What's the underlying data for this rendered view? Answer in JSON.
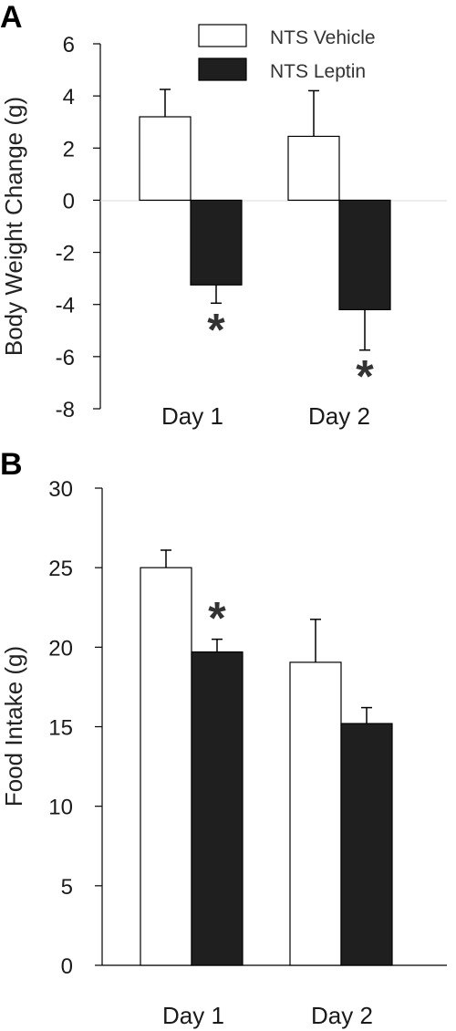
{
  "chart_data": [
    {
      "type": "bar",
      "panel_label": "A",
      "categories": [
        "Day 1",
        "Day 2"
      ],
      "series": [
        {
          "name": "NTS Vehicle",
          "values": [
            3.2,
            2.45
          ],
          "errors": [
            1.05,
            1.75
          ],
          "color": "#ffffff"
        },
        {
          "name": "NTS Leptin",
          "values": [
            -3.25,
            -4.2
          ],
          "errors": [
            0.7,
            1.55
          ],
          "color": "#1f1f1f"
        }
      ],
      "significance": [
        {
          "category": "Day 1",
          "series": "NTS Leptin",
          "mark": "*"
        },
        {
          "category": "Day 2",
          "series": "NTS Leptin",
          "mark": "*"
        }
      ],
      "ylabel": "Body Weight Change (g)",
      "ylim": [
        -8,
        6
      ],
      "yticks": [
        "6",
        "4",
        "2",
        "0",
        "-2",
        "-4",
        "-6",
        "-8"
      ],
      "legend_position": "top-right"
    },
    {
      "type": "bar",
      "panel_label": "B",
      "categories": [
        "Day 1",
        "Day 2"
      ],
      "series": [
        {
          "name": "NTS Vehicle",
          "values": [
            25.0,
            19.05
          ],
          "errors": [
            1.1,
            2.7
          ],
          "color": "#ffffff"
        },
        {
          "name": "NTS Leptin",
          "values": [
            19.7,
            15.2
          ],
          "errors": [
            0.8,
            1.0
          ],
          "color": "#1f1f1f"
        }
      ],
      "significance": [
        {
          "category": "Day 1",
          "series": "NTS Leptin",
          "mark": "*"
        }
      ],
      "ylabel": "Food Intake (g)",
      "ylim": [
        0,
        30
      ],
      "yticks": [
        "30",
        "25",
        "20",
        "15",
        "10",
        "5",
        "0"
      ]
    }
  ]
}
